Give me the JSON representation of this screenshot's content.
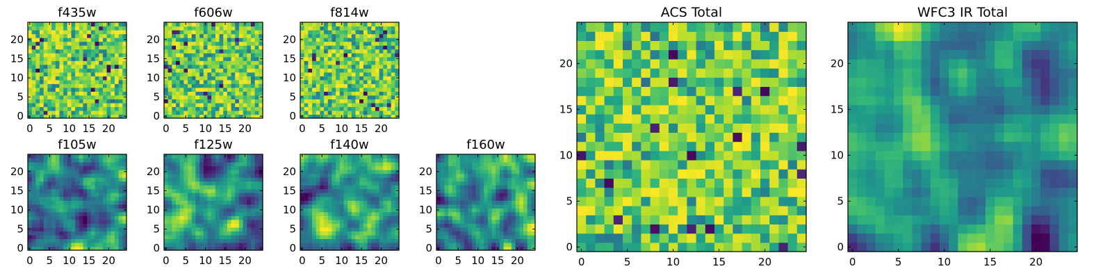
{
  "chart_data": [
    {
      "type": "heatmap",
      "title": "f435w",
      "grid_size": 25,
      "xticks": [
        0,
        5,
        10,
        15,
        20
      ],
      "yticks": [
        0,
        5,
        10,
        15,
        20
      ],
      "xlim": [
        0,
        24
      ],
      "ylim": [
        0,
        24
      ],
      "colormap": "viridis",
      "texture": "noise",
      "seed": 11
    },
    {
      "type": "heatmap",
      "title": "f606w",
      "grid_size": 25,
      "xticks": [
        0,
        5,
        10,
        15,
        20
      ],
      "yticks": [
        0,
        5,
        10,
        15,
        20
      ],
      "xlim": [
        0,
        24
      ],
      "ylim": [
        0,
        24
      ],
      "colormap": "viridis",
      "texture": "noise",
      "seed": 23
    },
    {
      "type": "heatmap",
      "title": "f814w",
      "grid_size": 25,
      "xticks": [
        0,
        5,
        10,
        15,
        20
      ],
      "yticks": [
        0,
        5,
        10,
        15,
        20
      ],
      "xlim": [
        0,
        24
      ],
      "ylim": [
        0,
        24
      ],
      "colormap": "viridis",
      "texture": "noise",
      "seed": 37
    },
    {
      "type": "heatmap",
      "title": "f105w",
      "grid_size": 25,
      "xticks": [
        0,
        5,
        10,
        15,
        20
      ],
      "yticks": [
        0,
        5,
        10,
        15,
        20
      ],
      "xlim": [
        0,
        24
      ],
      "ylim": [
        0,
        24
      ],
      "colormap": "viridis",
      "texture": "smooth",
      "seed": 41
    },
    {
      "type": "heatmap",
      "title": "f125w",
      "grid_size": 25,
      "xticks": [
        0,
        5,
        10,
        15,
        20
      ],
      "yticks": [
        0,
        5,
        10,
        15,
        20
      ],
      "xlim": [
        0,
        24
      ],
      "ylim": [
        0,
        24
      ],
      "colormap": "viridis",
      "texture": "smooth",
      "seed": 53
    },
    {
      "type": "heatmap",
      "title": "f140w",
      "grid_size": 25,
      "xticks": [
        0,
        5,
        10,
        15,
        20
      ],
      "yticks": [
        0,
        5,
        10,
        15,
        20
      ],
      "xlim": [
        0,
        24
      ],
      "ylim": [
        0,
        24
      ],
      "colormap": "viridis",
      "texture": "smooth",
      "seed": 67
    },
    {
      "type": "heatmap",
      "title": "f160w",
      "grid_size": 25,
      "xticks": [
        0,
        5,
        10,
        15,
        20
      ],
      "yticks": [
        0,
        5,
        10,
        15,
        20
      ],
      "xlim": [
        0,
        24
      ],
      "ylim": [
        0,
        24
      ],
      "colormap": "viridis",
      "texture": "smooth",
      "seed": 79
    },
    {
      "type": "heatmap",
      "title": "ACS Total",
      "grid_size": 25,
      "xticks": [
        0,
        5,
        10,
        15,
        20
      ],
      "yticks": [
        0,
        5,
        10,
        15,
        20
      ],
      "xlim": [
        0,
        24
      ],
      "ylim": [
        0,
        24
      ],
      "colormap": "viridis",
      "texture": "noise",
      "seed": 97
    },
    {
      "type": "heatmap",
      "title": "WFC3 IR Total",
      "grid_size": 25,
      "xticks": [
        0,
        5,
        10,
        15,
        20
      ],
      "yticks": [
        0,
        5,
        10,
        15,
        20
      ],
      "xlim": [
        0,
        24
      ],
      "ylim": [
        0,
        24
      ],
      "colormap": "viridis",
      "texture": "smooth",
      "seed": 131
    }
  ]
}
